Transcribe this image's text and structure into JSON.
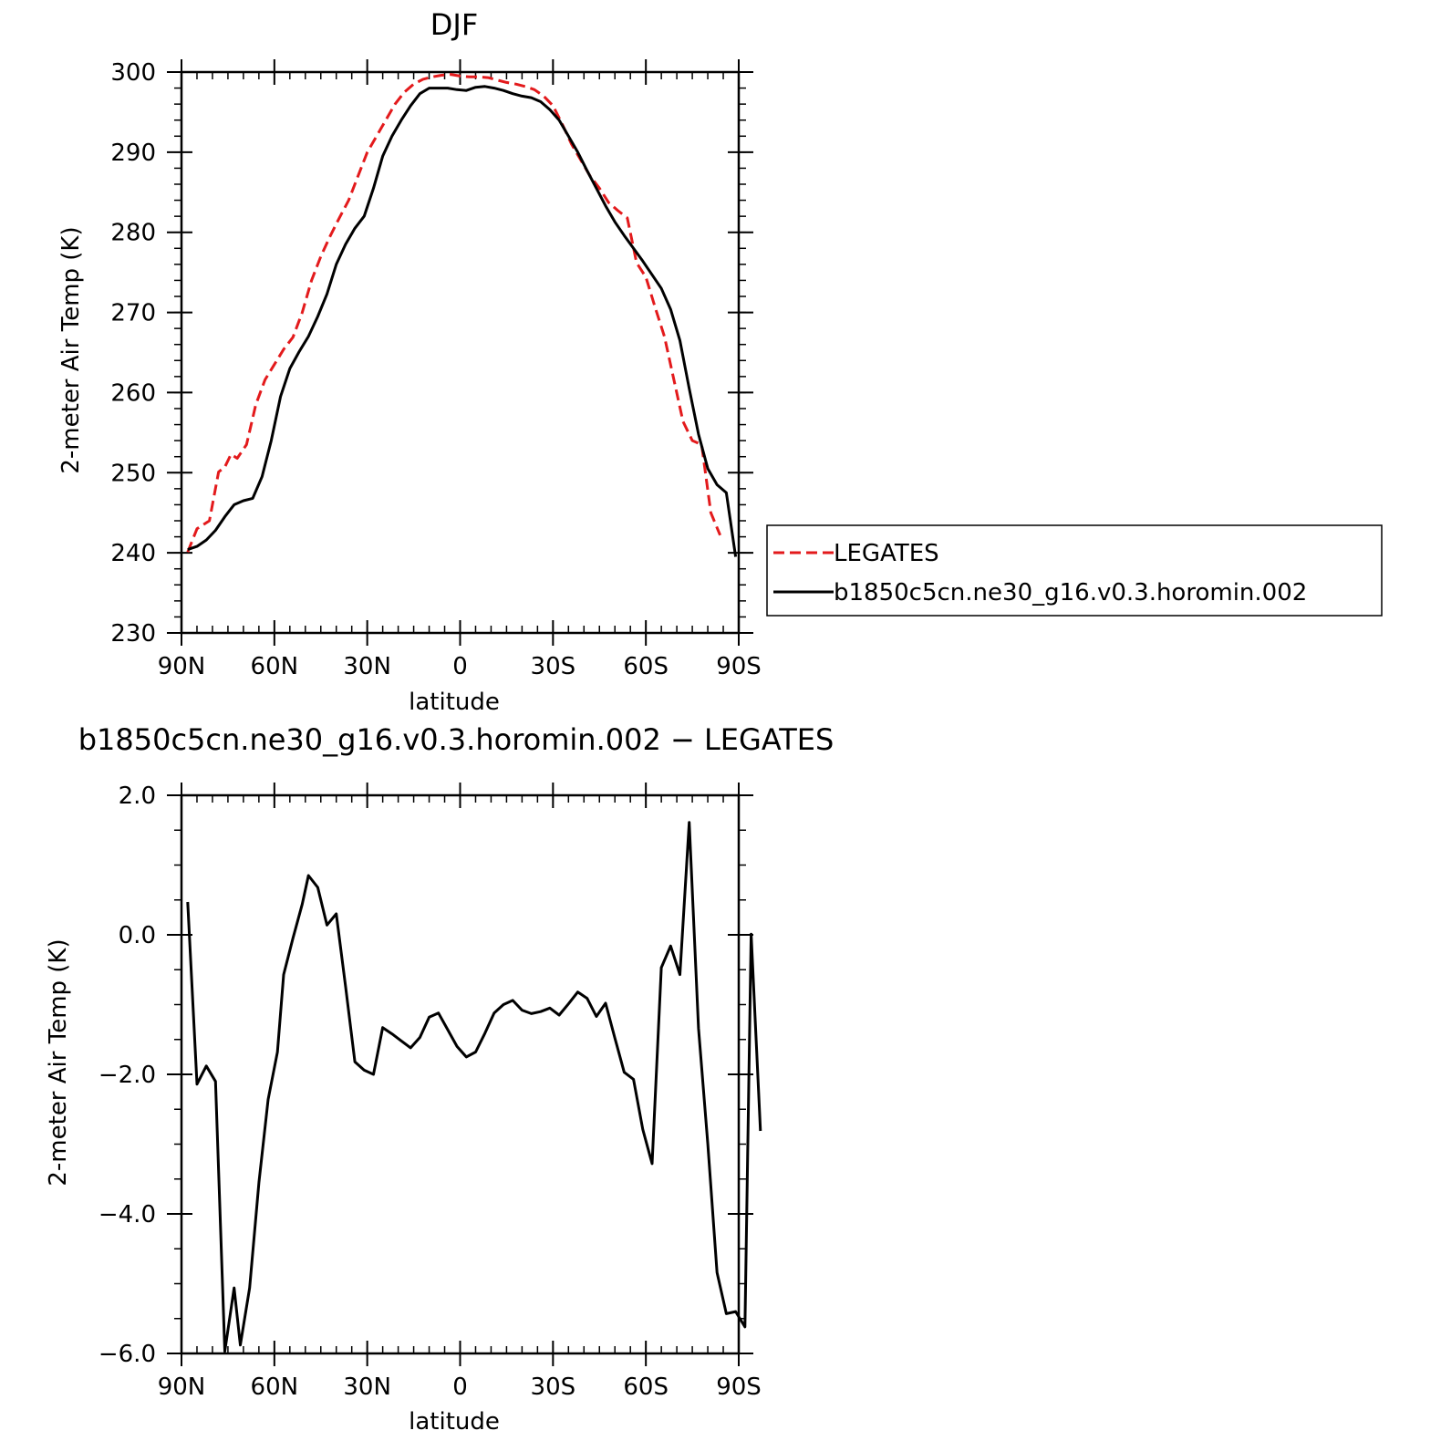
{
  "chart_data": [
    {
      "type": "line",
      "title": "DJF",
      "xlabel": "latitude",
      "ylabel": "2-meter Air Temp (K)",
      "xlim": [
        90,
        -90
      ],
      "ylim": [
        230,
        300
      ],
      "x_ticks": [
        90,
        60,
        30,
        0,
        -30,
        -60,
        -90
      ],
      "x_tick_labels": [
        "90N",
        "60N",
        "30N",
        "0",
        "30S",
        "60S",
        "90S"
      ],
      "y_ticks": [
        230,
        240,
        250,
        260,
        270,
        280,
        290,
        300
      ],
      "y_tick_labels": [
        "230",
        "240",
        "250",
        "260",
        "270",
        "280",
        "290",
        "300"
      ],
      "legend_position": "right",
      "series": [
        {
          "name": "LEGATES",
          "color": "#e31a1c",
          "dash": "dashed",
          "points": [
            [
              88,
              240.1
            ],
            [
              85,
              243.0
            ],
            [
              81,
              244.0
            ],
            [
              78,
              250.1
            ],
            [
              76,
              250.7
            ],
            [
              74,
              252.3
            ],
            [
              72,
              251.8
            ],
            [
              69,
              253.5
            ],
            [
              66,
              258.5
            ],
            [
              63,
              261.6
            ],
            [
              60,
              263.5
            ],
            [
              57,
              265.4
            ],
            [
              54,
              266.9
            ],
            [
              51,
              270.0
            ],
            [
              48,
              274.0
            ],
            [
              45,
              277.0
            ],
            [
              42,
              279.5
            ],
            [
              39,
              281.8
            ],
            [
              36,
              284.0
            ],
            [
              33,
              287.0
            ],
            [
              30,
              290.0
            ],
            [
              27,
              292.0
            ],
            [
              24,
              294.0
            ],
            [
              21,
              296.0
            ],
            [
              18,
              297.5
            ],
            [
              15,
              298.5
            ],
            [
              12,
              299.1
            ],
            [
              9,
              299.4
            ],
            [
              6,
              299.6
            ],
            [
              3,
              299.7
            ],
            [
              0,
              299.5
            ],
            [
              -3,
              299.4
            ],
            [
              -6,
              299.4
            ],
            [
              -9,
              299.3
            ],
            [
              -12,
              299.0
            ],
            [
              -15,
              298.7
            ],
            [
              -18,
              298.5
            ],
            [
              -21,
              298.2
            ],
            [
              -24,
              297.8
            ],
            [
              -27,
              297.0
            ],
            [
              -30,
              295.8
            ],
            [
              -33,
              293.5
            ],
            [
              -36,
              291.0
            ],
            [
              -39,
              289.0
            ],
            [
              -42,
              287.0
            ],
            [
              -45,
              285.5
            ],
            [
              -48,
              283.7
            ],
            [
              -51,
              282.7
            ],
            [
              -54,
              281.8
            ],
            [
              -57,
              276.2
            ],
            [
              -60,
              274.4
            ],
            [
              -63,
              270.6
            ],
            [
              -66,
              267.0
            ],
            [
              -69,
              261.7
            ],
            [
              -72,
              256.4
            ],
            [
              -75,
              254.0
            ],
            [
              -78,
              253.5
            ],
            [
              -81,
              245.0
            ],
            [
              -84,
              242.2
            ]
          ]
        },
        {
          "name": "b1850c5cn.ne30_g16.v0.3.horomin.002",
          "color": "#000000",
          "dash": "solid",
          "points": [
            [
              88,
              240.4
            ],
            [
              85,
              240.8
            ],
            [
              82,
              241.6
            ],
            [
              79,
              242.8
            ],
            [
              76,
              244.5
            ],
            [
              73,
              246.0
            ],
            [
              70,
              246.5
            ],
            [
              67,
              246.8
            ],
            [
              64,
              249.5
            ],
            [
              61,
              254.0
            ],
            [
              58,
              259.5
            ],
            [
              55,
              263.0
            ],
            [
              52,
              265.1
            ],
            [
              49,
              267.0
            ],
            [
              46,
              269.5
            ],
            [
              43,
              272.3
            ],
            [
              40,
              276.0
            ],
            [
              37,
              278.5
            ],
            [
              34,
              280.5
            ],
            [
              31,
              282.0
            ],
            [
              28,
              285.5
            ],
            [
              25,
              289.5
            ],
            [
              22,
              292.0
            ],
            [
              19,
              294.0
            ],
            [
              16,
              295.8
            ],
            [
              13,
              297.3
            ],
            [
              10,
              298.0
            ],
            [
              7,
              298.0
            ],
            [
              4,
              298.0
            ],
            [
              1,
              297.8
            ],
            [
              -2,
              297.7
            ],
            [
              -5,
              298.1
            ],
            [
              -8,
              298.2
            ],
            [
              -11,
              298.0
            ],
            [
              -14,
              297.7
            ],
            [
              -17,
              297.3
            ],
            [
              -20,
              297.0
            ],
            [
              -23,
              296.8
            ],
            [
              -26,
              296.3
            ],
            [
              -29,
              295.3
            ],
            [
              -32,
              294.0
            ],
            [
              -35,
              292.0
            ],
            [
              -38,
              290.0
            ],
            [
              -41,
              287.7
            ],
            [
              -44,
              285.5
            ],
            [
              -47,
              283.3
            ],
            [
              -50,
              281.3
            ],
            [
              -53,
              279.6
            ],
            [
              -56,
              278.0
            ],
            [
              -59,
              276.4
            ],
            [
              -62,
              274.7
            ],
            [
              -65,
              273.0
            ],
            [
              -68,
              270.4
            ],
            [
              -71,
              266.5
            ],
            [
              -74,
              260.5
            ],
            [
              -77,
              254.8
            ],
            [
              -80,
              250.5
            ],
            [
              -83,
              248.5
            ],
            [
              -86,
              247.5
            ],
            [
              -89,
              239.5
            ]
          ]
        }
      ]
    },
    {
      "type": "line",
      "title": "b1850c5cn.ne30_g16.v0.3.horomin.002 − LEGATES",
      "xlabel": "latitude",
      "ylabel": "2-meter Air Temp (K)",
      "xlim": [
        90,
        -90
      ],
      "ylim": [
        -6.0,
        2.0
      ],
      "x_ticks": [
        90,
        60,
        30,
        0,
        -30,
        -60,
        -90
      ],
      "x_tick_labels": [
        "90N",
        "60N",
        "30N",
        "0",
        "30S",
        "60S",
        "90S"
      ],
      "y_ticks": [
        -6.0,
        -4.0,
        -2.0,
        0.0,
        2.0
      ],
      "y_tick_labels": [
        "−6.0",
        "−4.0",
        "−2.0",
        "0.0",
        "2.0"
      ],
      "series": [
        {
          "color": "#000000",
          "dash": "solid",
          "points": [
            [
              88,
              0.47
            ],
            [
              85,
              -2.14
            ],
            [
              82,
              -1.88
            ],
            [
              79,
              -2.1
            ],
            [
              76,
              -5.97
            ],
            [
              73,
              -5.06
            ],
            [
              71,
              -5.88
            ],
            [
              68,
              -5.06
            ],
            [
              65,
              -3.55
            ],
            [
              62,
              -2.36
            ],
            [
              59,
              -1.68
            ],
            [
              57,
              -0.57
            ],
            [
              54,
              -0.05
            ],
            [
              51,
              0.44
            ],
            [
              49,
              0.85
            ],
            [
              46,
              0.68
            ],
            [
              43,
              0.14
            ],
            [
              40,
              0.3
            ],
            [
              37,
              -0.74
            ],
            [
              34,
              -1.82
            ],
            [
              31,
              -1.94
            ],
            [
              28,
              -2.0
            ],
            [
              25,
              -1.33
            ],
            [
              22,
              -1.42
            ],
            [
              19,
              -1.52
            ],
            [
              16,
              -1.62
            ],
            [
              13,
              -1.47
            ],
            [
              10,
              -1.18
            ],
            [
              7,
              -1.12
            ],
            [
              4,
              -1.36
            ],
            [
              1,
              -1.6
            ],
            [
              -2,
              -1.75
            ],
            [
              -5,
              -1.68
            ],
            [
              -8,
              -1.41
            ],
            [
              -11,
              -1.12
            ],
            [
              -14,
              -1.0
            ],
            [
              -17,
              -0.94
            ],
            [
              -20,
              -1.08
            ],
            [
              -23,
              -1.13
            ],
            [
              -26,
              -1.1
            ],
            [
              -29,
              -1.05
            ],
            [
              -32,
              -1.15
            ],
            [
              -35,
              -0.99
            ],
            [
              -38,
              -0.82
            ],
            [
              -41,
              -0.91
            ],
            [
              -44,
              -1.17
            ],
            [
              -47,
              -0.98
            ],
            [
              -50,
              -1.48
            ],
            [
              -53,
              -1.97
            ],
            [
              -56,
              -2.07
            ],
            [
              -59,
              -2.79
            ],
            [
              -62,
              -3.28
            ],
            [
              -65,
              -0.47
            ],
            [
              -68,
              -0.16
            ],
            [
              -71,
              -0.57
            ],
            [
              -74,
              1.61
            ],
            [
              -77,
              -1.34
            ],
            [
              -80,
              -3.0
            ],
            [
              -83,
              -4.84
            ],
            [
              -86,
              -5.43
            ],
            [
              -89,
              -5.4
            ],
            [
              -92,
              -5.62
            ],
            [
              -94,
              0.01
            ],
            [
              -97,
              -2.81
            ]
          ]
        }
      ]
    }
  ]
}
